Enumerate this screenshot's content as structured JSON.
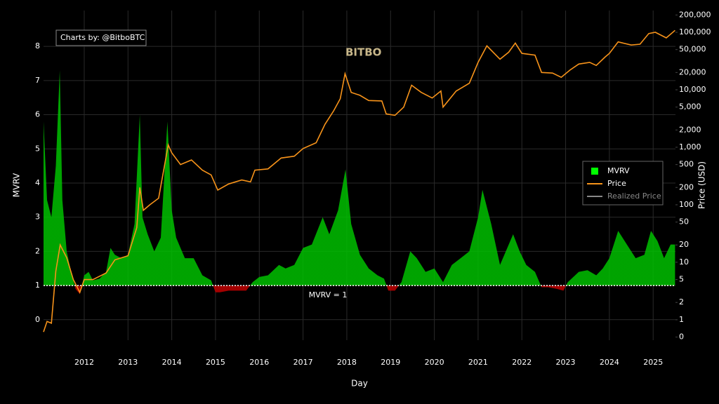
{
  "chart_data": {
    "type": "area-line",
    "credit": "Charts by: @BitboBTC",
    "logo": "BITBO",
    "xlabel": "Day",
    "ylabel": "MVRV",
    "y2label": "Price (USD)",
    "grid": true,
    "y2scale": "log",
    "legend_position": "right",
    "xlim": [
      2011.07,
      2025.51
    ],
    "xticks": [
      2012,
      2013,
      2014,
      2015,
      2016,
      2017,
      2018,
      2019,
      2020,
      2021,
      2022,
      2023,
      2024,
      2025
    ],
    "ylim": [
      -0.6,
      9.05
    ],
    "yticks": [
      0,
      1,
      2,
      3,
      4,
      5,
      6,
      7,
      8
    ],
    "y2lim": [
      -0.18,
      239000
    ],
    "y2ticks": [
      0,
      1,
      2,
      5,
      10,
      20,
      50,
      100,
      200,
      500,
      {
        "value": 1000,
        "label": "1,000"
      },
      {
        "value": 2000,
        "label": "2,000"
      },
      {
        "value": 5000,
        "label": "5,000"
      },
      {
        "value": 10000,
        "label": "10,000"
      },
      {
        "value": 20000,
        "label": "20,000"
      },
      {
        "value": 50000,
        "label": "50,000"
      },
      {
        "value": 100000,
        "label": "100,000"
      },
      {
        "value": 200000,
        "label": "200,000"
      }
    ],
    "reference_line": {
      "value": 1,
      "label": "MVRV = 1"
    },
    "series": [
      {
        "name": "MVRV",
        "color": "#00c000",
        "below_color": "#c00000",
        "legend_color": "#00ff00",
        "x": [
          2011.07,
          2011.15,
          2011.25,
          2011.35,
          2011.44,
          2011.5,
          2011.6,
          2011.7,
          2011.8,
          2011.9,
          2012.0,
          2012.1,
          2012.2,
          2012.35,
          2012.5,
          2012.6,
          2012.7,
          2012.85,
          2013.0,
          2013.15,
          2013.27,
          2013.33,
          2013.45,
          2013.6,
          2013.75,
          2013.9,
          2014.0,
          2014.1,
          2014.3,
          2014.5,
          2014.7,
          2014.9,
          2015.0,
          2015.1,
          2015.3,
          2015.5,
          2015.7,
          2015.85,
          2016.0,
          2016.2,
          2016.45,
          2016.6,
          2016.8,
          2017.0,
          2017.2,
          2017.45,
          2017.6,
          2017.8,
          2017.97,
          2018.1,
          2018.3,
          2018.5,
          2018.7,
          2018.85,
          2018.95,
          2019.1,
          2019.25,
          2019.45,
          2019.6,
          2019.8,
          2020.0,
          2020.2,
          2020.4,
          2020.6,
          2020.8,
          2021.0,
          2021.1,
          2021.3,
          2021.5,
          2021.6,
          2021.8,
          2021.95,
          2022.1,
          2022.3,
          2022.45,
          2022.6,
          2022.8,
          2022.95,
          2023.05,
          2023.3,
          2023.5,
          2023.7,
          2023.85,
          2024.0,
          2024.2,
          2024.4,
          2024.6,
          2024.8,
          2024.95,
          2025.1,
          2025.25,
          2025.4,
          2025.5
        ],
        "values": [
          5.8,
          3.5,
          3.0,
          4.5,
          7.3,
          3.5,
          2.0,
          1.4,
          0.9,
          0.75,
          1.3,
          1.4,
          1.15,
          1.2,
          1.4,
          2.1,
          1.9,
          1.8,
          1.9,
          2.8,
          6.0,
          3.0,
          2.5,
          2.0,
          2.4,
          5.8,
          3.2,
          2.4,
          1.8,
          1.8,
          1.3,
          1.15,
          0.8,
          0.8,
          0.85,
          0.85,
          0.85,
          1.1,
          1.25,
          1.3,
          1.6,
          1.5,
          1.6,
          2.1,
          2.2,
          3.0,
          2.5,
          3.2,
          4.4,
          2.8,
          1.9,
          1.5,
          1.3,
          1.2,
          0.85,
          0.85,
          1.1,
          2.0,
          1.8,
          1.4,
          1.5,
          1.1,
          1.6,
          1.8,
          2.0,
          3.0,
          3.8,
          2.8,
          1.6,
          1.9,
          2.5,
          2.0,
          1.6,
          1.4,
          0.95,
          0.95,
          0.9,
          0.85,
          1.1,
          1.4,
          1.45,
          1.3,
          1.5,
          1.8,
          2.6,
          2.2,
          1.8,
          1.9,
          2.6,
          2.3,
          1.8,
          2.2,
          2.2
        ]
      },
      {
        "name": "Price",
        "color": "#f7931a",
        "axis": "y2",
        "x": [
          2011.07,
          2011.15,
          2011.25,
          2011.35,
          2011.45,
          2011.6,
          2011.75,
          2011.9,
          2012.0,
          2012.2,
          2012.5,
          2012.7,
          2013.0,
          2013.2,
          2013.27,
          2013.35,
          2013.5,
          2013.7,
          2013.92,
          2014.0,
          2014.2,
          2014.45,
          2014.7,
          2014.9,
          2015.05,
          2015.3,
          2015.6,
          2015.8,
          2015.9,
          2016.2,
          2016.5,
          2016.8,
          2017.0,
          2017.3,
          2017.5,
          2017.7,
          2017.85,
          2017.96,
          2018.1,
          2018.3,
          2018.5,
          2018.8,
          2018.9,
          2019.1,
          2019.3,
          2019.48,
          2019.7,
          2019.95,
          2020.15,
          2020.2,
          2020.5,
          2020.8,
          2021.0,
          2021.2,
          2021.5,
          2021.7,
          2021.85,
          2022.0,
          2022.3,
          2022.45,
          2022.7,
          2022.9,
          2023.1,
          2023.3,
          2023.55,
          2023.7,
          2023.9,
          2024.0,
          2024.2,
          2024.5,
          2024.7,
          2024.9,
          2025.05,
          2025.3,
          2025.5
        ],
        "values": [
          0.3,
          0.9,
          0.8,
          7,
          20,
          12,
          5,
          3,
          5,
          5,
          6.5,
          11,
          13,
          40,
          200,
          80,
          100,
          130,
          1100,
          800,
          500,
          600,
          400,
          330,
          180,
          230,
          270,
          250,
          400,
          420,
          650,
          700,
          950,
          1200,
          2500,
          4300,
          7000,
          19000,
          9000,
          8000,
          6500,
          6400,
          3800,
          3600,
          5000,
          12000,
          9000,
          7200,
          9500,
          5000,
          9500,
          13000,
          30000,
          58000,
          34000,
          45000,
          65000,
          43000,
          40000,
          20000,
          19500,
          16500,
          22000,
          28000,
          30000,
          26500,
          37000,
          43000,
          68000,
          60000,
          62000,
          95000,
          100000,
          80000,
          108000
        ]
      },
      {
        "name": "Realized Price",
        "color": "#888888",
        "axis": "y2",
        "visible": false
      }
    ]
  }
}
